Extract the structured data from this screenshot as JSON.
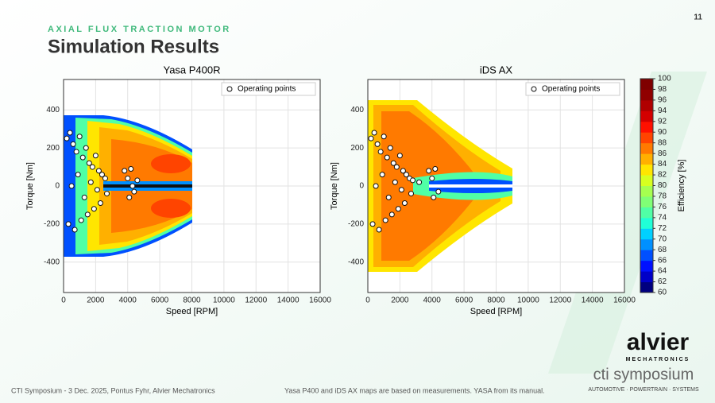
{
  "slide": {
    "kicker": "AXIAL FLUX TRACTION MOTOR",
    "title": "Simulation Results",
    "page_number": "11",
    "footer_left": "CTI Symposium - 3 Dec. 2025, Pontus Fyhr, Alvier Mechatronics",
    "footer_note": "Yasa P400 and iDS AX maps are based on measurements. YASA from its manual.",
    "logo": "alvier",
    "logo_sub": "MECHATRONICS",
    "brand": "cti symposium",
    "brand_sub": "AUTOMOTIVE · POWERTRAIN · SYSTEMS"
  },
  "chart_data": [
    {
      "type": "scatter",
      "title": "Yasa P400R",
      "x_label": "Speed [RPM]",
      "y_label": "Torque [Nm]",
      "xlim": [
        0,
        16000
      ],
      "ylim": [
        -560,
        560
      ],
      "xticks": [
        0,
        2000,
        4000,
        6000,
        8000,
        10000,
        12000,
        14000,
        16000
      ],
      "yticks": [
        -400,
        -200,
        0,
        200,
        400
      ],
      "grid": true,
      "legend": "upper right",
      "series": [
        {
          "name": "Operating points",
          "color": "#ffffff",
          "x": [
            200,
            400,
            600,
            800,
            1000,
            1200,
            1400,
            1600,
            1800,
            2000,
            2200,
            2400,
            2600,
            300,
            700,
            1100,
            1500,
            1900,
            2300,
            2700,
            500,
            900,
            1300,
            1700,
            2100,
            3800,
            4000,
            4200,
            4400,
            4600,
            4100,
            4300
          ],
          "values": [
            250,
            280,
            220,
            180,
            260,
            150,
            200,
            120,
            100,
            160,
            80,
            60,
            40,
            -200,
            -230,
            -180,
            -150,
            -120,
            -90,
            -40,
            0,
            60,
            -60,
            20,
            -20,
            80,
            40,
            90,
            -30,
            30,
            -60,
            0
          ]
        }
      ]
    },
    {
      "type": "scatter",
      "title": "iDS AX",
      "x_label": "Speed [RPM]",
      "y_label": "Torque [Nm]",
      "xlim": [
        0,
        16000
      ],
      "ylim": [
        -560,
        560
      ],
      "xticks": [
        0,
        2000,
        4000,
        6000,
        8000,
        10000,
        12000,
        14000,
        16000
      ],
      "yticks": [
        -400,
        -200,
        0,
        200,
        400
      ],
      "grid": true,
      "legend": "upper right",
      "series": [
        {
          "name": "Operating points",
          "color": "#ffffff",
          "x": [
            200,
            400,
            600,
            800,
            1000,
            1200,
            1400,
            1600,
            1800,
            2000,
            2200,
            2400,
            2600,
            2800,
            300,
            700,
            1100,
            1500,
            1900,
            2300,
            2700,
            500,
            900,
            1300,
            1700,
            2100,
            3800,
            4000,
            4200,
            4400,
            4100,
            3200
          ],
          "values": [
            250,
            280,
            220,
            180,
            260,
            150,
            200,
            120,
            100,
            160,
            80,
            60,
            40,
            30,
            -200,
            -230,
            -180,
            -150,
            -120,
            -90,
            -40,
            0,
            60,
            -60,
            20,
            -20,
            80,
            40,
            90,
            -30,
            -60,
            20
          ]
        }
      ]
    },
    {
      "type": "colorbar",
      "label": "Efficiency [%]",
      "ylim": [
        60,
        100
      ],
      "yticks": [
        60,
        62,
        64,
        66,
        68,
        70,
        72,
        74,
        76,
        78,
        80,
        82,
        84,
        86,
        88,
        90,
        92,
        94,
        96,
        98,
        100
      ],
      "colors": [
        "#00007f",
        "#0000c8",
        "#0010ff",
        "#0050ff",
        "#0090ff",
        "#00d0ff",
        "#20ffd7",
        "#50ffa6",
        "#80ff76",
        "#a6ff50",
        "#d7ff20",
        "#ffe600",
        "#ffb000",
        "#ff7a00",
        "#ff4400",
        "#ff1000",
        "#d40000",
        "#b00000",
        "#900000",
        "#7f0000"
      ]
    }
  ]
}
